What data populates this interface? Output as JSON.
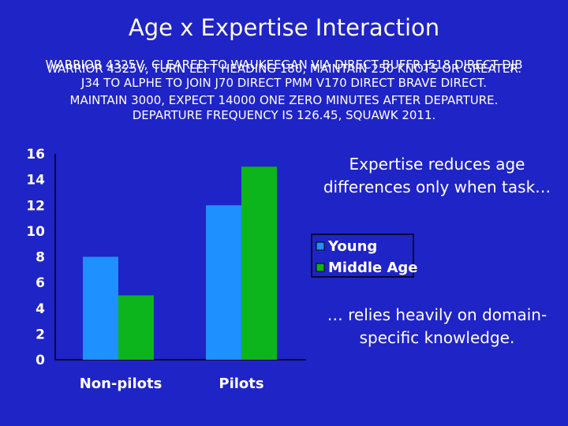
{
  "title": "Age x Expertise Interaction",
  "clearance": {
    "line1a": "WARRIOR 4325V, CLEARED TO WAUKEEGAN VIA DIRECT BUFFR J518 DIRECT DJB",
    "line1b": "WARRIOR 4325V, TURN LEFT HEADING 180, MAINTAIN 250 KNOTS OR GREATER.",
    "line2": "J34 TO ALPHE TO JOIN J70 DIRECT PMM V170 DIRECT BRAVE DIRECT.",
    "line3": "MAINTAIN 3000, EXPECT 14000 ONE ZERO MINUTES AFTER DEPARTURE.",
    "line4": "DEPARTURE FREQUENCY IS 126.45, SQUAWK 2011."
  },
  "notes": {
    "top": "Expertise reduces age differences only when task…",
    "bottom": "… relies heavily on domain-specific knowledge."
  },
  "chart_data": {
    "type": "bar",
    "categories": [
      "Non-pilots",
      "Pilots"
    ],
    "series": [
      {
        "name": "Young",
        "values": [
          8,
          12
        ],
        "color": "#1e90ff"
      },
      {
        "name": "Middle Age",
        "values": [
          5,
          15
        ],
        "color": "#0bb51b"
      }
    ],
    "yticks": [
      "0",
      "2",
      "4",
      "6",
      "8",
      "10",
      "12",
      "14",
      "16"
    ],
    "ylim": [
      0,
      16
    ],
    "legend_position": "right"
  }
}
